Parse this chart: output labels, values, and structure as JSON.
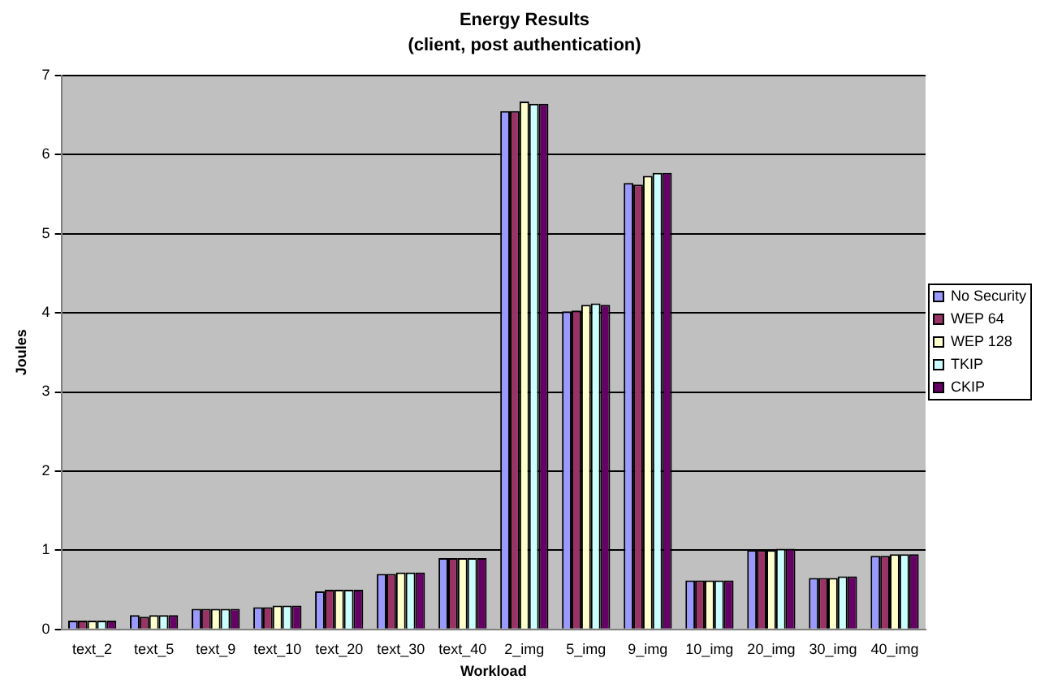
{
  "chart_data": {
    "type": "bar",
    "title": "Energy Results",
    "subtitle": "(client, post authentication)",
    "xlabel": "Workload",
    "ylabel": "Joules",
    "categories": [
      "text_2",
      "text_5",
      "text_9",
      "text_10",
      "text_20",
      "text_30",
      "text_40",
      "2_img",
      "5_img",
      "9_img",
      "10_img",
      "20_img",
      "30_img",
      "40_img"
    ],
    "series": [
      {
        "name": "No Security",
        "color": "#9999ff",
        "values": [
          0.11,
          0.18,
          0.26,
          0.28,
          0.48,
          0.7,
          0.9,
          6.55,
          4.02,
          5.64,
          0.62,
          1.0,
          0.65,
          0.93
        ]
      },
      {
        "name": "WEP 64",
        "color": "#993366",
        "values": [
          0.11,
          0.16,
          0.26,
          0.28,
          0.5,
          0.7,
          0.9,
          6.55,
          4.03,
          5.62,
          0.62,
          1.0,
          0.65,
          0.93
        ]
      },
      {
        "name": "WEP 128",
        "color": "#ffffcc",
        "values": [
          0.11,
          0.18,
          0.26,
          0.3,
          0.5,
          0.72,
          0.9,
          6.67,
          4.1,
          5.73,
          0.62,
          1.0,
          0.65,
          0.95
        ]
      },
      {
        "name": "TKIP",
        "color": "#ccffff",
        "values": [
          0.11,
          0.18,
          0.26,
          0.3,
          0.5,
          0.72,
          0.9,
          6.64,
          4.12,
          5.77,
          0.62,
          1.02,
          0.67,
          0.95
        ]
      },
      {
        "name": "CKIP",
        "color": "#660066",
        "values": [
          0.11,
          0.18,
          0.26,
          0.3,
          0.5,
          0.72,
          0.9,
          6.64,
          4.1,
          5.77,
          0.62,
          1.02,
          0.67,
          0.95
        ]
      }
    ],
    "ylim": [
      0,
      7
    ],
    "yticks": [
      0,
      1,
      2,
      3,
      4,
      5,
      6,
      7
    ],
    "grid": "y",
    "legend": "right"
  }
}
